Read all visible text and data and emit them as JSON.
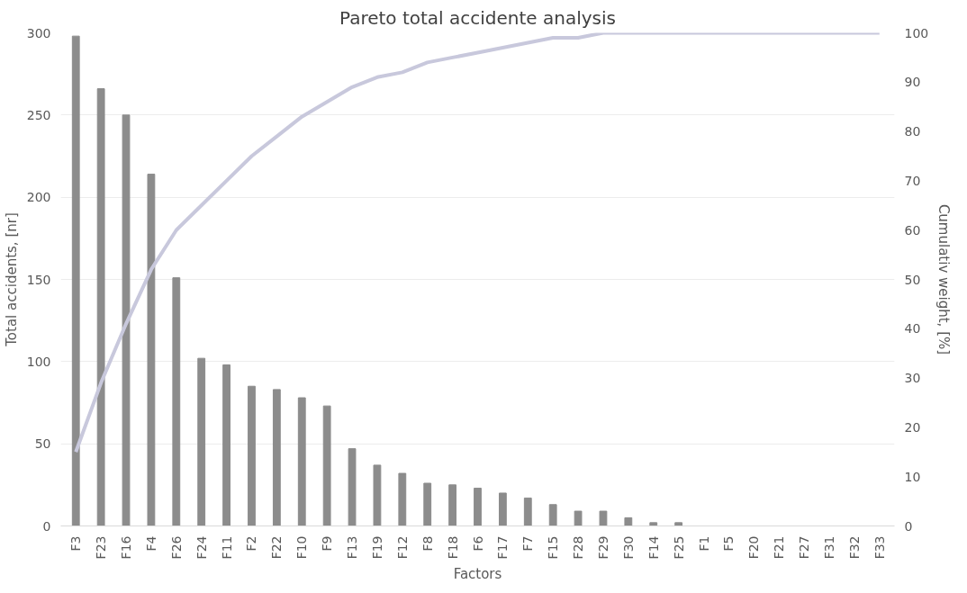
{
  "chart_data": {
    "type": "bar",
    "title": "Pareto total accidente analysis",
    "xlabel": "Factors",
    "ylabel": "Total accidents, [nr]",
    "y2label": "Cumulativ weight, [%]",
    "categories": [
      "F3",
      "F23",
      "F16",
      "F4",
      "F26",
      "F24",
      "F11",
      "F2",
      "F22",
      "F10",
      "F9",
      "F13",
      "F19",
      "F12",
      "F8",
      "F18",
      "F6",
      "F17",
      "F7",
      "F15",
      "F28",
      "F29",
      "F30",
      "F14",
      "F25",
      "F1",
      "F5",
      "F20",
      "F21",
      "F27",
      "F31",
      "F32",
      "F33"
    ],
    "series": [
      {
        "color": "#8c8c8c",
        "values": [
          298,
          266,
          250,
          214,
          151,
          102,
          98,
          85,
          83,
          78,
          73,
          47,
          37,
          32,
          26,
          25,
          23,
          20,
          17,
          13,
          9,
          9,
          5,
          2,
          2,
          0,
          0,
          0,
          0,
          0,
          0,
          0,
          0
        ]
      },
      {
        "type": "line",
        "axis": "y2",
        "color": "#c8c8dc",
        "values": [
          15,
          29,
          41,
          52,
          60,
          65,
          70,
          75,
          79,
          83,
          86,
          89,
          91,
          92,
          94,
          95,
          96,
          97,
          98,
          99,
          99,
          100,
          100,
          100,
          100,
          100,
          100,
          100,
          100,
          100,
          100,
          100,
          100
        ]
      }
    ],
    "ylim": [
      0,
      300
    ],
    "yticks": [
      0,
      50,
      100,
      150,
      200,
      250,
      300
    ],
    "y2lim": [
      0,
      100
    ],
    "y2ticks": [
      0,
      10,
      20,
      30,
      40,
      50,
      60,
      70,
      80,
      90,
      100
    ],
    "grid": "y",
    "marker": "none",
    "line_style": "solid"
  }
}
